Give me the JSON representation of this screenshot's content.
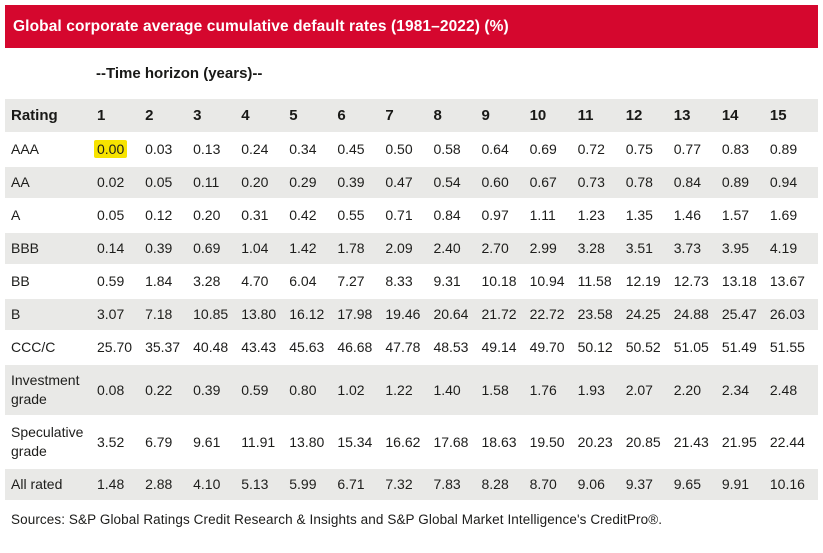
{
  "colors": {
    "banner_red": "#d5072e",
    "row_gray": "#e9e9e7",
    "highlight_yellow": "#f7e300",
    "ink": "#1d1d1b"
  },
  "chart_data": {
    "type": "table",
    "title": "Global corporate average cumulative default rates (1981–2022) (%)",
    "column_group_label": "--Time horizon (years)--",
    "columns": [
      "Rating",
      "1",
      "2",
      "3",
      "4",
      "5",
      "6",
      "7",
      "8",
      "9",
      "10",
      "11",
      "12",
      "13",
      "14",
      "15"
    ],
    "rows": [
      {
        "label": "AAA",
        "values": [
          "0.00",
          "0.03",
          "0.13",
          "0.24",
          "0.34",
          "0.45",
          "0.50",
          "0.58",
          "0.64",
          "0.69",
          "0.72",
          "0.75",
          "0.77",
          "0.83",
          "0.89"
        ]
      },
      {
        "label": "AA",
        "values": [
          "0.02",
          "0.05",
          "0.11",
          "0.20",
          "0.29",
          "0.39",
          "0.47",
          "0.54",
          "0.60",
          "0.67",
          "0.73",
          "0.78",
          "0.84",
          "0.89",
          "0.94"
        ]
      },
      {
        "label": "A",
        "values": [
          "0.05",
          "0.12",
          "0.20",
          "0.31",
          "0.42",
          "0.55",
          "0.71",
          "0.84",
          "0.97",
          "1.11",
          "1.23",
          "1.35",
          "1.46",
          "1.57",
          "1.69"
        ]
      },
      {
        "label": "BBB",
        "values": [
          "0.14",
          "0.39",
          "0.69",
          "1.04",
          "1.42",
          "1.78",
          "2.09",
          "2.40",
          "2.70",
          "2.99",
          "3.28",
          "3.51",
          "3.73",
          "3.95",
          "4.19"
        ]
      },
      {
        "label": "BB",
        "values": [
          "0.59",
          "1.84",
          "3.28",
          "4.70",
          "6.04",
          "7.27",
          "8.33",
          "9.31",
          "10.18",
          "10.94",
          "11.58",
          "12.19",
          "12.73",
          "13.18",
          "13.67"
        ]
      },
      {
        "label": "B",
        "values": [
          "3.07",
          "7.18",
          "10.85",
          "13.80",
          "16.12",
          "17.98",
          "19.46",
          "20.64",
          "21.72",
          "22.72",
          "23.58",
          "24.25",
          "24.88",
          "25.47",
          "26.03"
        ]
      },
      {
        "label": "CCC/C",
        "values": [
          "25.70",
          "35.37",
          "40.48",
          "43.43",
          "45.63",
          "46.68",
          "47.78",
          "48.53",
          "49.14",
          "49.70",
          "50.12",
          "50.52",
          "51.05",
          "51.49",
          "51.55"
        ]
      },
      {
        "label": "Investment grade",
        "values": [
          "0.08",
          "0.22",
          "0.39",
          "0.59",
          "0.80",
          "1.02",
          "1.22",
          "1.40",
          "1.58",
          "1.76",
          "1.93",
          "2.07",
          "2.20",
          "2.34",
          "2.48"
        ]
      },
      {
        "label": "Speculative grade",
        "values": [
          "3.52",
          "6.79",
          "9.61",
          "11.91",
          "13.80",
          "15.34",
          "16.62",
          "17.68",
          "18.63",
          "19.50",
          "20.23",
          "20.85",
          "21.43",
          "21.95",
          "22.44"
        ]
      },
      {
        "label": "All rated",
        "values": [
          "1.48",
          "2.88",
          "4.10",
          "5.13",
          "5.99",
          "6.71",
          "7.32",
          "7.83",
          "8.28",
          "8.70",
          "9.06",
          "9.37",
          "9.65",
          "9.91",
          "10.16"
        ]
      }
    ],
    "highlighted_cell": {
      "row": "AAA",
      "column": 1,
      "value": "0.00"
    },
    "source": "Sources: S&P Global Ratings Credit Research & Insights and S&P Global Market Intelligence's CreditPro®."
  }
}
